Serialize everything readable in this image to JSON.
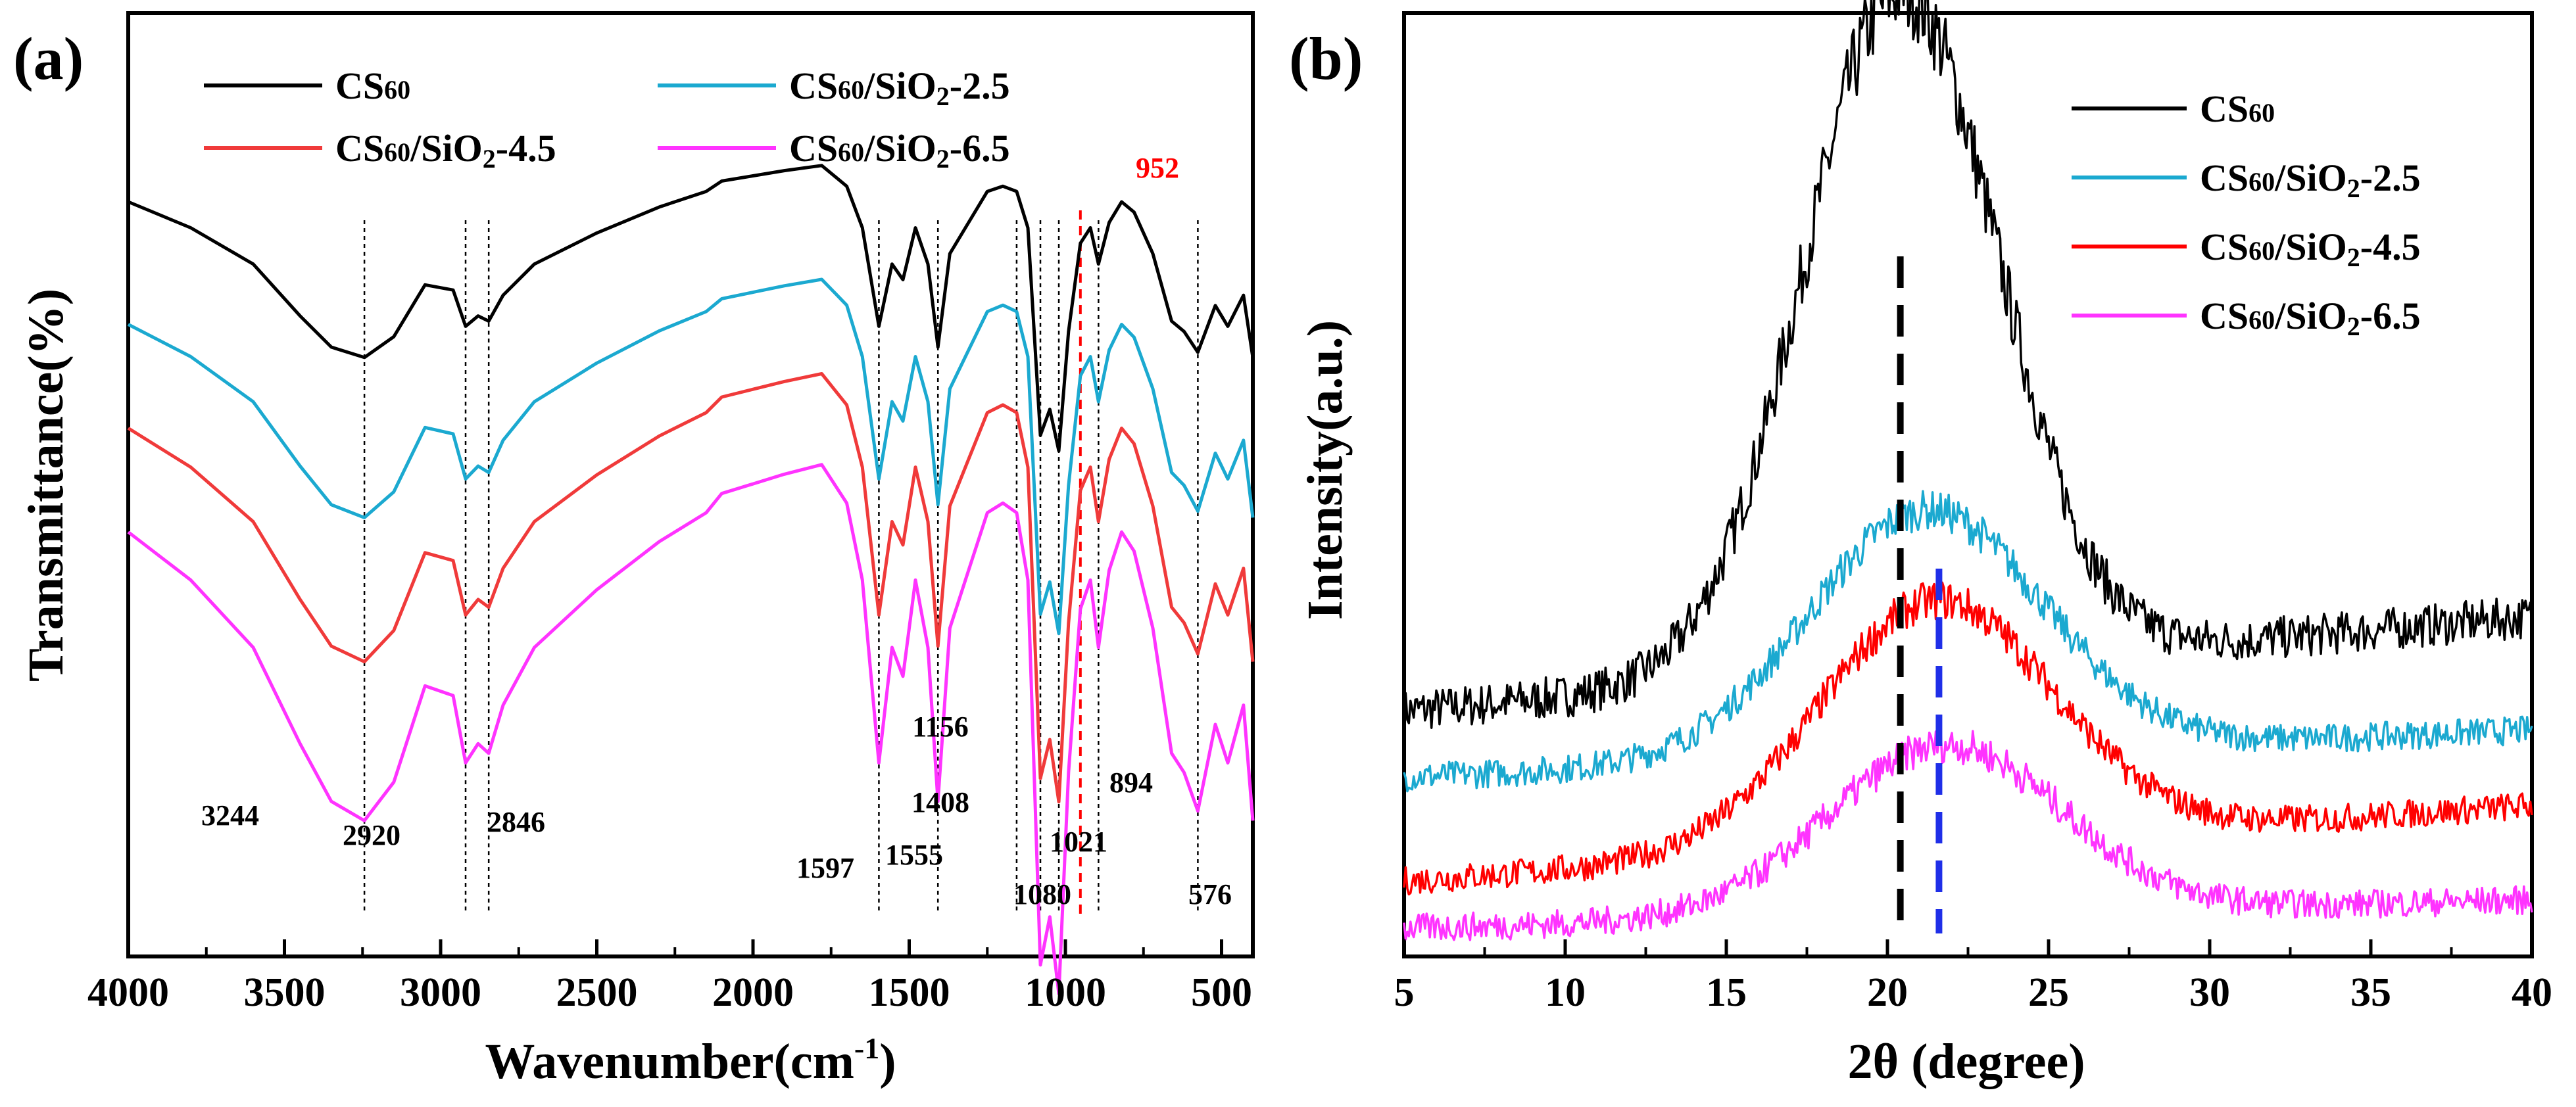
{
  "chart_data": [
    {
      "id": "a",
      "type": "line",
      "panel_label": "(a)",
      "xlabel": "Wavenumber(cm",
      "xlabel_sup": "-1",
      "xlabel_end": ")",
      "ylabel": "Transmittance(%)",
      "xlim": [
        4000,
        400
      ],
      "ylim": [
        0,
        1
      ],
      "x_ticks": [
        4000,
        3500,
        3000,
        2500,
        2000,
        1500,
        1000,
        500
      ],
      "legend": [
        {
          "name": "CS60",
          "sub": "60",
          "label": "CS",
          "rest": "",
          "color": "#000000"
        },
        {
          "name": "CS60/SiO2-2.5",
          "label": "CS",
          "sub": "60",
          "rest": "/SiO",
          "sub2": "2",
          "tail": "-2.5",
          "color": "#1ba9d0"
        },
        {
          "name": "CS60/SiO2-4.5",
          "label": "CS",
          "sub": "60",
          "rest": "/SiO",
          "sub2": "2",
          "tail": "-4.5",
          "color": "#f03a3a"
        },
        {
          "name": "CS60/SiO2-6.5",
          "label": "CS",
          "sub": "60",
          "rest": "/SiO",
          "sub2": "2",
          "tail": "-6.5",
          "color": "#ff33ff"
        }
      ],
      "baseline_offsets": [
        0.8,
        0.67,
        0.56,
        0.45
      ],
      "x": [
        4000,
        3800,
        3600,
        3450,
        3350,
        3244,
        3150,
        3050,
        2960,
        2920,
        2880,
        2846,
        2800,
        2700,
        2500,
        2300,
        2150,
        2100,
        2000,
        1900,
        1780,
        1700,
        1650,
        1597,
        1555,
        1520,
        1480,
        1440,
        1408,
        1370,
        1320,
        1250,
        1200,
        1156,
        1120,
        1080,
        1050,
        1021,
        990,
        952,
        920,
        894,
        860,
        820,
        780,
        720,
        660,
        620,
        576,
        520,
        480,
        430,
        400
      ],
      "series_base": [
        0.0,
        -0.05,
        -0.12,
        -0.22,
        -0.28,
        -0.3,
        -0.26,
        -0.16,
        -0.17,
        -0.24,
        -0.22,
        -0.23,
        -0.18,
        -0.12,
        -0.06,
        -0.01,
        0.02,
        0.04,
        0.05,
        0.06,
        0.07,
        0.03,
        -0.05,
        -0.24,
        -0.12,
        -0.15,
        -0.05,
        -0.12,
        -0.28,
        -0.1,
        -0.05,
        0.02,
        0.03,
        0.02,
        -0.05,
        -0.45,
        -0.4,
        -0.48,
        -0.25,
        -0.08,
        -0.05,
        -0.12,
        -0.04,
        0.0,
        -0.02,
        -0.1,
        -0.23,
        -0.25,
        -0.29,
        -0.2,
        -0.24,
        -0.18,
        -0.3
      ],
      "dashed_lines": [
        3244,
        2920,
        2846,
        1597,
        1408,
        1156,
        1080,
        1021,
        894,
        576
      ],
      "red_dashed_line": 952,
      "annotations": [
        {
          "text": "3244",
          "x": 3244
        },
        {
          "text": "2920",
          "x": 2920
        },
        {
          "text": "2846",
          "x": 2846
        },
        {
          "text": "1597",
          "x": 1597
        },
        {
          "text": "1555",
          "x": 1555
        },
        {
          "text": "1408",
          "x": 1408
        },
        {
          "text": "1156",
          "x": 1156
        },
        {
          "text": "1080",
          "x": 1080
        },
        {
          "text": "1021",
          "x": 1021
        },
        {
          "text": "894",
          "x": 894
        },
        {
          "text": "576",
          "x": 576
        },
        {
          "text": "952",
          "x": 952,
          "color": "#ff0000"
        }
      ]
    },
    {
      "id": "b",
      "type": "line",
      "panel_label": "(b)",
      "xlabel": "2θ (degree)",
      "ylabel": "Intensity(a.u.)",
      "xlim": [
        5,
        40
      ],
      "ylim": [
        0,
        1
      ],
      "x_ticks": [
        5,
        10,
        15,
        20,
        25,
        30,
        35,
        40
      ],
      "legend": [
        {
          "name": "CS60",
          "label": "CS",
          "sub": "60",
          "rest": "",
          "color": "#000000"
        },
        {
          "name": "CS60/SiO2-2.5",
          "label": "CS",
          "sub": "60",
          "rest": "/SiO",
          "sub2": "2",
          "tail": "-2.5",
          "color": "#1ba9d0"
        },
        {
          "name": "CS60/SiO2-4.5",
          "label": "CS",
          "sub": "60",
          "rest": "/SiO",
          "sub2": "2",
          "tail": "-4.5",
          "color": "#ff0000"
        },
        {
          "name": "CS60/SiO2-6.5",
          "label": "CS",
          "sub": "60",
          "rest": "/SiO",
          "sub2": "2",
          "tail": "-6.5",
          "color": "#ff33ff"
        }
      ],
      "peaks": [
        {
          "center": 20.4,
          "height": 0.72,
          "base_start": 0.26,
          "base_end": 0.36,
          "width": 3.0
        },
        {
          "center": 21.2,
          "height": 0.26,
          "base_start": 0.19,
          "base_end": 0.24,
          "width": 3.6
        },
        {
          "center": 21.5,
          "height": 0.26,
          "base_start": 0.08,
          "base_end": 0.16,
          "width": 3.6
        },
        {
          "center": 21.8,
          "height": 0.18,
          "base_start": 0.03,
          "base_end": 0.06,
          "width": 3.6
        }
      ],
      "dashed_lines": [
        {
          "x": 20.4,
          "color": "#000000"
        },
        {
          "x": 21.6,
          "color": "#1f2fe8"
        }
      ]
    }
  ]
}
